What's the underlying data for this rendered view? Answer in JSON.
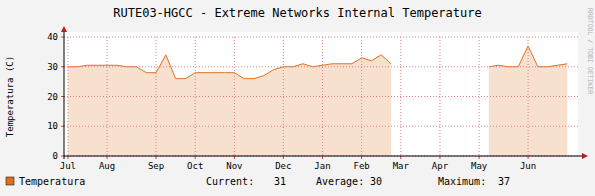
{
  "chart_data": {
    "type": "area",
    "title": "RUTE03-HGCC - Extreme Networks Internal Temperature",
    "y_label": "Temperatura (C)",
    "watermark": "RRDTOOL / TOBI OETIKER",
    "categories": [
      "Jul",
      null,
      null,
      null,
      "Aug",
      null,
      null,
      null,
      null,
      "Sep",
      null,
      null,
      null,
      "Oct",
      null,
      null,
      null,
      "Nov",
      null,
      null,
      null,
      null,
      "Dec",
      null,
      null,
      null,
      "Jan",
      null,
      null,
      null,
      "Feb",
      null,
      null,
      null,
      "Mar",
      null,
      null,
      null,
      "Apr",
      null,
      null,
      null,
      "May",
      null,
      null,
      null,
      null,
      "Jun",
      null,
      null,
      null,
      null
    ],
    "series": [
      {
        "name": "Temperatura",
        "color": "#e0701e",
        "values": [
          30,
          30,
          30.5,
          30.5,
          30.5,
          30.5,
          30,
          30,
          28,
          28,
          34,
          26,
          26,
          28,
          28,
          28,
          28,
          28,
          26,
          26,
          27,
          29,
          30,
          30,
          31,
          30,
          30.5,
          31,
          31,
          31,
          33,
          32,
          34,
          31,
          null,
          null,
          null,
          null,
          null,
          null,
          null,
          null,
          null,
          30,
          30.5,
          30,
          30,
          37,
          30,
          30,
          30.5,
          31
        ]
      }
    ],
    "ylim": [
      0,
      40
    ],
    "yticks": [
      0,
      10,
      20,
      30,
      40
    ],
    "grid": true,
    "stats": [
      {
        "label": "Current:",
        "value": 31
      },
      {
        "label": "Average:",
        "value": 30
      },
      {
        "label": "Maximum:",
        "value": 37
      }
    ]
  }
}
